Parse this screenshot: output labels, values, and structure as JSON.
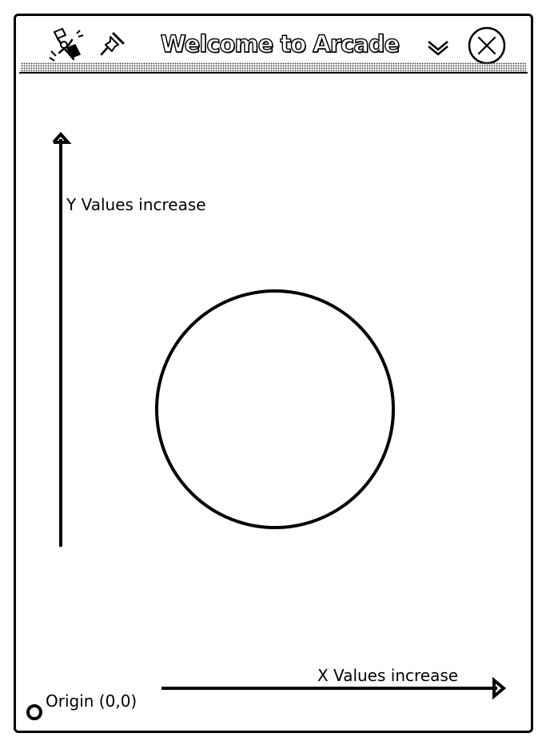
{
  "window": {
    "title": "Welcome to Arcade",
    "icons": {
      "app": "satellite-icon",
      "pin": "pin-icon",
      "menu": "chevron-down-icon",
      "close": "close-icon"
    }
  },
  "canvas": {
    "y_axis_label": "Y Values increase",
    "x_axis_label": "X Values increase",
    "origin_label": "Origin (0,0)",
    "shapes": [
      {
        "type": "circle-outline",
        "color": "#000000"
      },
      {
        "type": "arrow-up",
        "color": "#000000"
      },
      {
        "type": "arrow-right",
        "color": "#000000"
      },
      {
        "type": "origin-marker-ring",
        "color": "#000000"
      }
    ]
  }
}
